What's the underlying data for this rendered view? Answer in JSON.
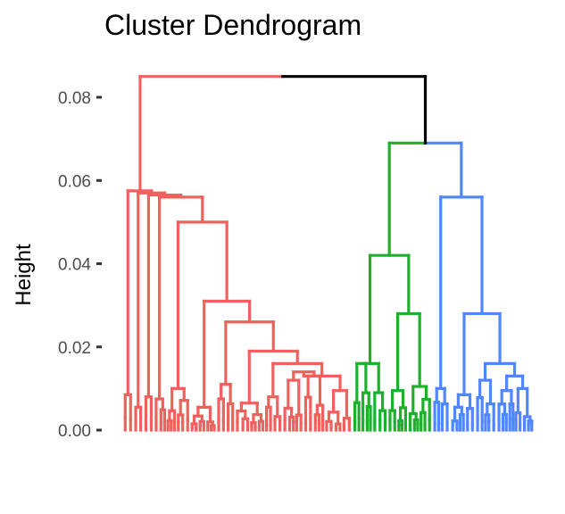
{
  "chart_data": {
    "type": "dendrogram",
    "title": "Cluster Dendrogram",
    "xlabel": "",
    "ylabel": "Height",
    "ylim": [
      0,
      0.085
    ],
    "yticks": [
      0.0,
      0.02,
      0.04,
      0.06,
      0.08
    ],
    "ytick_labels": [
      "0.00",
      "0.02",
      "0.04",
      "0.06",
      "0.08"
    ],
    "grid": false,
    "colors": {
      "red": "#F0615E",
      "green": "#1DB02D",
      "blue": "#5086FF",
      "root": "#000000"
    },
    "clusters": [
      {
        "color": "red",
        "leaf_share": 0.56
      },
      {
        "color": "green",
        "leaf_share": 0.195
      },
      {
        "color": "blue",
        "leaf_share": 0.245
      }
    ],
    "merge_heights": {
      "root": 0.085,
      "green_blue": 0.069,
      "red_top": 0.085,
      "red_levels": [
        0.057,
        0.0565,
        0.056,
        0.05,
        0.031,
        0.026,
        0.019,
        0.016,
        0.013,
        0.012
      ],
      "green_top": 0.042,
      "green_sub": [
        0.028,
        0.016,
        0.01
      ],
      "blue_top": 0.056,
      "blue_sub": [
        0.028,
        0.016,
        0.012,
        0.01
      ]
    }
  }
}
